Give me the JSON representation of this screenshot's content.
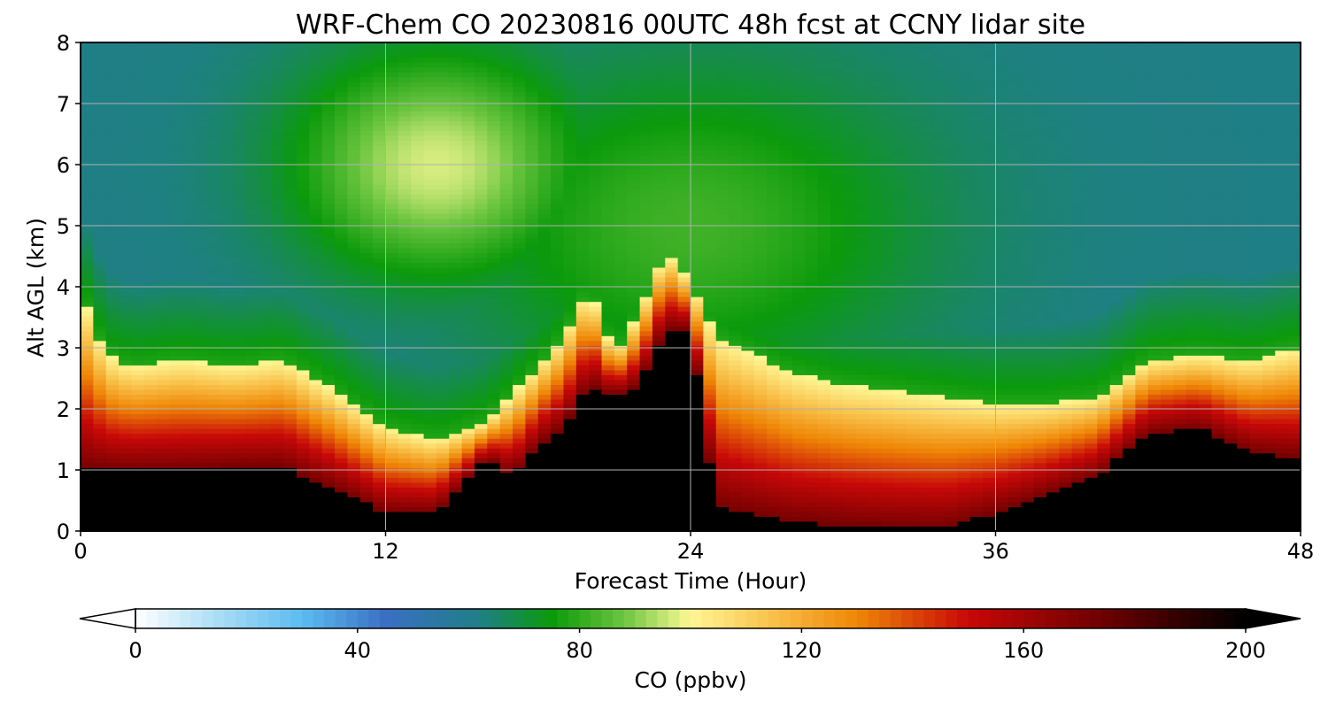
{
  "chart_data": {
    "type": "heatmap",
    "title": "WRF-Chem CO  20230816 00UTC 48h fcst at CCNY lidar site",
    "xlabel": "Forecast Time (Hour)",
    "ylabel": "Alt AGL (km)",
    "xlim": [
      0,
      48
    ],
    "ylim": [
      0,
      8
    ],
    "x_ticks": [
      0,
      12,
      24,
      36,
      48
    ],
    "y_ticks": [
      0,
      1,
      2,
      3,
      4,
      5,
      6,
      7,
      8
    ],
    "grid": true,
    "colorbar": {
      "label": "CO  (ppbv)",
      "range": [
        0,
        200
      ],
      "ticks": [
        0,
        40,
        80,
        120,
        160,
        200
      ],
      "extend": "both",
      "colormap_stops": [
        {
          "value": 0,
          "color": "#ffffff"
        },
        {
          "value": 15,
          "color": "#a9dcf5"
        },
        {
          "value": 30,
          "color": "#5bbcf0"
        },
        {
          "value": 45,
          "color": "#3a6fc4"
        },
        {
          "value": 62,
          "color": "#1f7f86"
        },
        {
          "value": 75,
          "color": "#0b9a0b"
        },
        {
          "value": 88,
          "color": "#6cc540"
        },
        {
          "value": 97,
          "color": "#d8ec80"
        },
        {
          "value": 100,
          "color": "#fff694"
        },
        {
          "value": 115,
          "color": "#f8c048"
        },
        {
          "value": 130,
          "color": "#ef8606"
        },
        {
          "value": 150,
          "color": "#c80808"
        },
        {
          "value": 175,
          "color": "#6a0000"
        },
        {
          "value": 200,
          "color": "#000000"
        }
      ]
    },
    "boundary_layer_top_km": {
      "hours": [
        0,
        1,
        2,
        4,
        6,
        8,
        10,
        12,
        14,
        16,
        18,
        19,
        20,
        21,
        22,
        23,
        24,
        25,
        26,
        28,
        30,
        32,
        34,
        36,
        38,
        40,
        42,
        44,
        46,
        48
      ],
      "values": [
        3.9,
        2.9,
        2.7,
        2.8,
        2.7,
        2.8,
        2.3,
        1.7,
        1.5,
        1.8,
        2.7,
        3.2,
        4.0,
        2.9,
        3.6,
        4.6,
        4.1,
        3.2,
        3.0,
        2.6,
        2.4,
        2.3,
        2.2,
        2.1,
        2.1,
        2.2,
        2.8,
        2.9,
        2.8,
        3.0
      ]
    },
    "high_core_top_km": {
      "hours": [
        0,
        2,
        4,
        6,
        8,
        10,
        12,
        14,
        16,
        17,
        18,
        19,
        20,
        21,
        22,
        23,
        24,
        25,
        26,
        28,
        30,
        32,
        34,
        36,
        38,
        40,
        42,
        44,
        46,
        48
      ],
      "values": [
        1.0,
        1.0,
        1.0,
        1.05,
        1.05,
        0.7,
        0.3,
        0.3,
        1.2,
        0.9,
        1.4,
        1.7,
        2.4,
        2.2,
        2.4,
        3.3,
        3.3,
        0.4,
        0.3,
        0.15,
        0.1,
        0.05,
        0.05,
        0.3,
        0.6,
        0.9,
        1.6,
        1.7,
        1.3,
        1.2
      ]
    },
    "upper_plume": {
      "center_hour": 14,
      "center_km": 6.0,
      "max_ppbv": 97
    }
  }
}
